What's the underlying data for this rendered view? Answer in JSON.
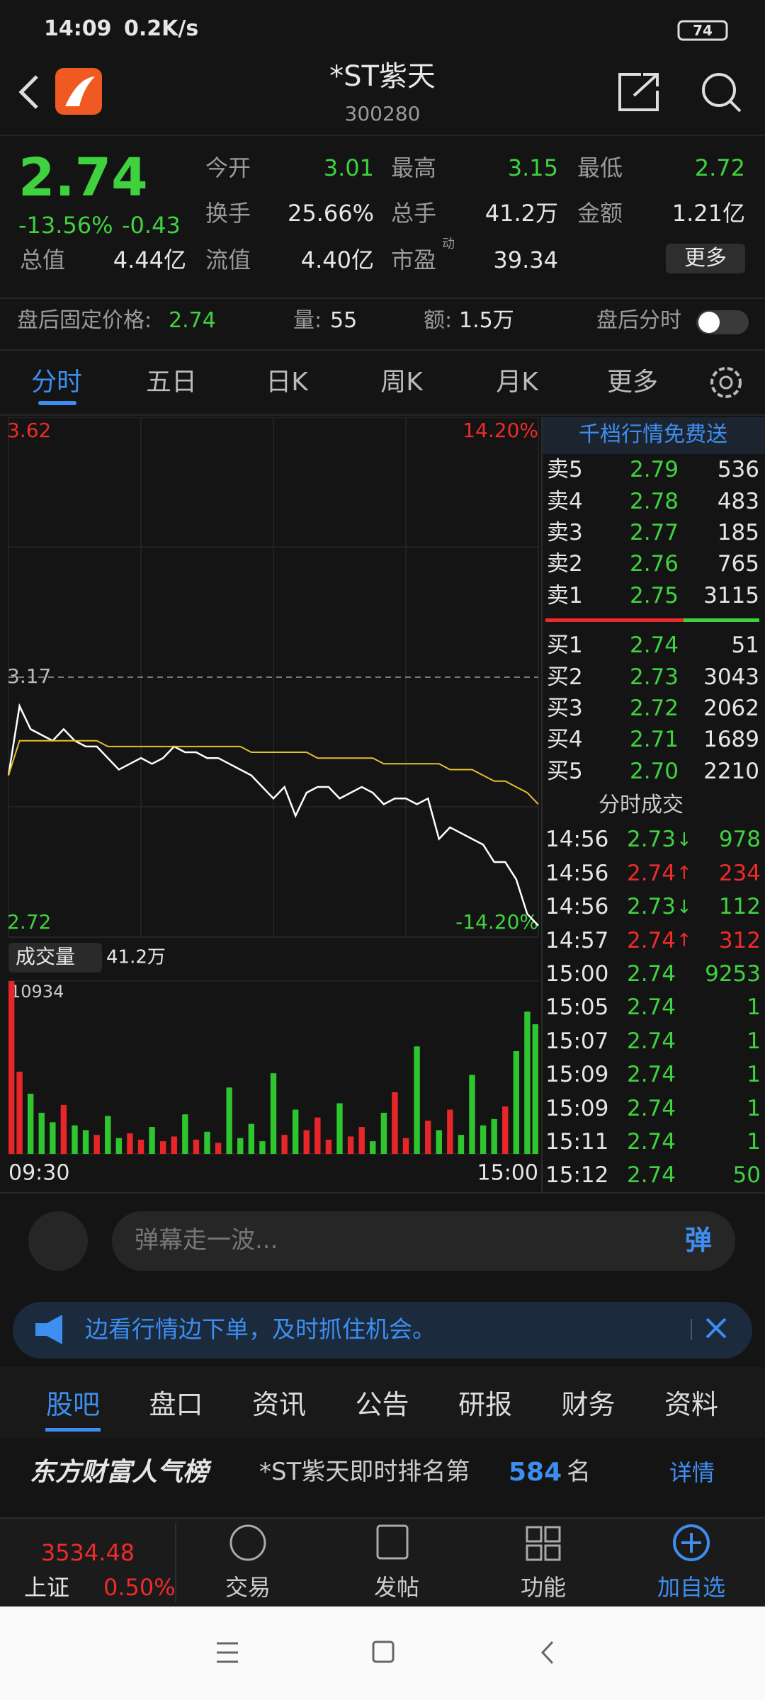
{
  "status_bar": {
    "time": "14:09",
    "speed": "0.2K/s",
    "battery": "74"
  },
  "header": {
    "title": "*ST紫天",
    "code": "300280"
  },
  "quote": {
    "price": "2.74",
    "change_pct": "-13.56%",
    "change": "-0.43",
    "stats": [
      [
        {
          "label": "今开",
          "value": "3.01"
        },
        {
          "label": "最高",
          "value": "3.15"
        },
        {
          "label": "最低",
          "value": "2.72"
        }
      ],
      [
        {
          "label": "换手",
          "value": "25.66%"
        },
        {
          "label": "总手",
          "value": "41.2万"
        },
        {
          "label": "金额",
          "value": "1.21亿"
        }
      ],
      [
        {
          "label": "总值",
          "value": "4.44亿"
        },
        {
          "label": "流值",
          "value": "4.40亿"
        },
        {
          "label": "市盈",
          "value": "39.34",
          "tag": "动"
        }
      ]
    ],
    "more": "更多"
  },
  "after_hours": {
    "price_label": "盘后固定价格:",
    "price": "2.74",
    "volume_label": "量:",
    "volume": "55",
    "amount_label": "额:",
    "amount": "1.5万",
    "toggle_label": "盘后分时"
  },
  "tabs": [
    "分时",
    "五日",
    "日K",
    "周K",
    "月K",
    "更多"
  ],
  "chart_data": {
    "type": "line",
    "x": [
      0,
      5,
      10,
      15,
      20,
      25,
      30,
      35,
      40,
      45,
      50,
      55,
      60,
      65,
      70,
      75,
      80,
      85,
      90,
      95,
      100,
      105,
      110,
      115,
      120,
      125,
      130,
      135,
      140,
      145,
      150,
      155,
      160,
      165,
      170,
      175,
      180,
      185,
      190,
      195,
      200,
      205,
      210,
      215,
      220,
      225,
      230,
      235,
      240
    ],
    "xlim": [
      0,
      240
    ],
    "xticks": [
      {
        "value": 0,
        "label": "09:30"
      },
      {
        "value": 240,
        "label": "15:00"
      }
    ],
    "ylim": [
      2.72,
      3.62
    ],
    "yticks": [
      {
        "value": 2.72,
        "label": "2.72"
      },
      {
        "value": 3.17,
        "label": "3.17"
      },
      {
        "value": 3.62,
        "label": "3.62"
      }
    ],
    "y2lim": [
      -14.2,
      14.2
    ],
    "y2ticks": [
      {
        "value": -14.2,
        "label": "-14.20%"
      },
      {
        "value": 14.2,
        "label": "14.20%"
      }
    ],
    "series": [
      {
        "color": "#ffffff",
        "values": [
          3.0,
          3.12,
          3.08,
          3.07,
          3.06,
          3.08,
          3.06,
          3.05,
          3.05,
          3.03,
          3.01,
          3.02,
          3.03,
          3.02,
          3.03,
          3.05,
          3.04,
          3.04,
          3.03,
          3.03,
          3.02,
          3.01,
          3.0,
          2.98,
          2.96,
          2.98,
          2.93,
          2.97,
          2.98,
          2.98,
          2.96,
          2.97,
          2.98,
          2.97,
          2.95,
          2.96,
          2.96,
          2.95,
          2.96,
          2.89,
          2.91,
          2.9,
          2.89,
          2.88,
          2.85,
          2.85,
          2.82,
          2.76,
          2.74
        ]
      },
      {
        "color": "#e3c12c",
        "values": [
          3.0,
          3.06,
          3.06,
          3.06,
          3.06,
          3.06,
          3.06,
          3.06,
          3.06,
          3.05,
          3.05,
          3.05,
          3.05,
          3.05,
          3.05,
          3.05,
          3.05,
          3.05,
          3.05,
          3.05,
          3.05,
          3.05,
          3.04,
          3.04,
          3.04,
          3.04,
          3.04,
          3.04,
          3.03,
          3.03,
          3.03,
          3.03,
          3.03,
          3.03,
          3.02,
          3.02,
          3.02,
          3.02,
          3.02,
          3.02,
          3.01,
          3.01,
          3.01,
          3.0,
          2.99,
          2.99,
          2.98,
          2.97,
          2.95
        ]
      }
    ],
    "volume": {
      "label": "成交量",
      "total": "41.2万",
      "ylim": [
        0,
        10934
      ],
      "yticks": [
        10934
      ],
      "up_color": "#e8262a",
      "down_color": "#2fc52f",
      "values": [
        10934,
        5200,
        3800,
        2600,
        2000,
        3100,
        1800,
        1500,
        1200,
        2400,
        1000,
        1300,
        900,
        1700,
        800,
        1100,
        2500,
        900,
        1400,
        700,
        4200,
        1000,
        1900,
        800,
        5100,
        1200,
        2800,
        1500,
        2300,
        900,
        3200,
        1100,
        1700,
        800,
        2600,
        3900,
        1000,
        6800,
        2100,
        1500,
        2800,
        1200,
        5000,
        1800,
        2200,
        3000,
        6500,
        9000,
        8200
      ]
    }
  },
  "order_book": {
    "banner": "千档行情免费送",
    "sell": [
      {
        "label": "卖5",
        "price": "2.79",
        "volume": "536"
      },
      {
        "label": "卖4",
        "price": "2.78",
        "volume": "483"
      },
      {
        "label": "卖3",
        "price": "2.77",
        "volume": "185"
      },
      {
        "label": "卖2",
        "price": "2.76",
        "volume": "765"
      },
      {
        "label": "卖1",
        "price": "2.75",
        "volume": "3115"
      }
    ],
    "buy": [
      {
        "label": "买1",
        "price": "2.74",
        "volume": "51"
      },
      {
        "label": "买2",
        "price": "2.73",
        "volume": "3043"
      },
      {
        "label": "买3",
        "price": "2.72",
        "volume": "2062"
      },
      {
        "label": "买4",
        "price": "2.71",
        "volume": "1689"
      },
      {
        "label": "买5",
        "price": "2.70",
        "volume": "2210"
      }
    ],
    "trades_title": "分时成交",
    "trades": [
      {
        "time": "14:56",
        "price": "2.73",
        "dir": "↓",
        "volume": "978"
      },
      {
        "time": "14:56",
        "price": "2.74",
        "dir": "↑",
        "volume": "234"
      },
      {
        "time": "14:56",
        "price": "2.73",
        "dir": "↓",
        "volume": "112"
      },
      {
        "time": "14:57",
        "price": "2.74",
        "dir": "↑",
        "volume": "312"
      },
      {
        "time": "15:00",
        "price": "2.74",
        "volume": "9253"
      },
      {
        "time": "15:05",
        "price": "2.74",
        "volume": "1"
      },
      {
        "time": "15:07",
        "price": "2.74",
        "volume": "1"
      },
      {
        "time": "15:09",
        "price": "2.74",
        "volume": "1"
      },
      {
        "time": "15:09",
        "price": "2.74",
        "volume": "1"
      },
      {
        "time": "15:11",
        "price": "2.74",
        "volume": "1"
      },
      {
        "time": "15:12",
        "price": "2.74",
        "volume": "50"
      }
    ]
  },
  "comment_bar": {
    "placeholder": "弹幕走一波...",
    "button": "弹"
  },
  "notice": "边看行情边下单，及时抓住机会。",
  "section_tabs": [
    "股吧",
    "盘口",
    "资讯",
    "公告",
    "研报",
    "财务",
    "资料"
  ],
  "ranking": {
    "title": "东方财富人气榜",
    "text": "*ST紫天即时排名第",
    "rank": "584",
    "suffix": "名",
    "link": "详情"
  },
  "bottom_nav": {
    "index_value": "3534.48",
    "index_name": "上证",
    "index_change": "0.50%",
    "items": [
      "交易",
      "发帖",
      "功能",
      "加自选"
    ]
  }
}
